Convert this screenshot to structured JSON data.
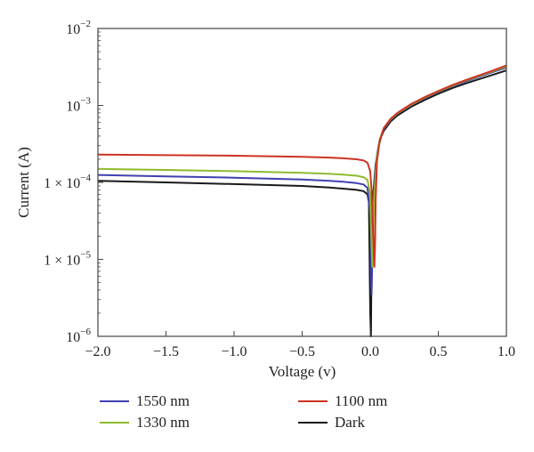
{
  "chart_data": {
    "type": "line",
    "xlabel": "Voltage (v)",
    "ylabel": "Current (A)",
    "xlim": [
      -2.0,
      1.0
    ],
    "ylim": [
      1e-06,
      0.01
    ],
    "yscale": "log",
    "grid": false,
    "legend_placement": "bottom",
    "x_ticks": [
      {
        "value": -2.0,
        "label": "−2.0"
      },
      {
        "value": -1.5,
        "label": "−1.5"
      },
      {
        "value": -1.0,
        "label": "−1.0"
      },
      {
        "value": -0.5,
        "label": "−0.5"
      },
      {
        "value": 0.0,
        "label": "0.0"
      },
      {
        "value": 0.5,
        "label": "0.5"
      },
      {
        "value": 1.0,
        "label": "1.0"
      }
    ],
    "y_ticks": [
      {
        "value": 0.01,
        "base": "10",
        "exp": "−2"
      },
      {
        "value": 0.001,
        "base": "10",
        "exp": "−3"
      },
      {
        "value": 0.0001,
        "base": "1 × 10",
        "exp": "−4"
      },
      {
        "value": 1e-05,
        "base": "1 × 10",
        "exp": "−5"
      },
      {
        "value": 1e-06,
        "base": "10",
        "exp": "−6"
      }
    ],
    "series": [
      {
        "name": "Dark",
        "color": "#1a1a1a",
        "x": [
          -2.0,
          -1.5,
          -1.0,
          -0.5,
          -0.3,
          -0.2,
          -0.1,
          -0.05,
          -0.02,
          -0.01,
          0.0,
          0.005,
          0.01,
          0.02,
          0.04,
          0.06,
          0.08,
          0.1,
          0.15,
          0.2,
          0.3,
          0.4,
          0.5,
          0.6,
          0.7,
          0.8,
          0.9,
          1.0
        ],
        "y": [
          0.000105,
          0.0001,
          9.5e-05,
          9e-05,
          8.6e-05,
          8.3e-05,
          8e-05,
          7.7e-05,
          7e-05,
          5.5e-05,
          2e-06,
          1e-06,
          1e-05,
          6.5e-05,
          0.00017,
          0.00029,
          0.00039,
          0.00047,
          0.00062,
          0.00074,
          0.00096,
          0.00118,
          0.00142,
          0.00167,
          0.00193,
          0.0022,
          0.0025,
          0.00285
        ]
      },
      {
        "name": "1550 nm",
        "color": "#4040b0",
        "x": [
          -2.0,
          -1.5,
          -1.0,
          -0.5,
          -0.3,
          -0.2,
          -0.1,
          -0.05,
          -0.02,
          0.0,
          0.005,
          0.01,
          0.02,
          0.03,
          0.05,
          0.07,
          0.1,
          0.15,
          0.2,
          0.3,
          0.4,
          0.5,
          0.6,
          0.7,
          0.8,
          0.9,
          1.0
        ],
        "y": [
          0.000125,
          0.00012,
          0.000115,
          0.000109,
          0.000105,
          0.000102,
          9.8e-05,
          9.4e-05,
          8.5e-05,
          4e-05,
          8e-06,
          3.5e-06,
          2.5e-05,
          9e-05,
          0.00023,
          0.00036,
          0.0005,
          0.00065,
          0.00078,
          0.00101,
          0.00124,
          0.0015,
          0.00177,
          0.00205,
          0.00236,
          0.00272,
          0.0031
        ]
      },
      {
        "name": "1330 nm",
        "color": "#8fba2e",
        "x": [
          -2.0,
          -1.5,
          -1.0,
          -0.5,
          -0.3,
          -0.2,
          -0.1,
          -0.05,
          -0.02,
          0.0,
          0.01,
          0.015,
          0.02,
          0.03,
          0.05,
          0.07,
          0.1,
          0.15,
          0.2,
          0.3,
          0.4,
          0.5,
          0.6,
          0.7,
          0.8,
          0.9,
          1.0
        ],
        "y": [
          0.00015,
          0.000145,
          0.00014,
          0.000133,
          0.000129,
          0.000126,
          0.000122,
          0.000117,
          0.000108,
          7e-05,
          1.5e-05,
          8e-06,
          2e-05,
          7.5e-05,
          0.00022,
          0.00036,
          0.00051,
          0.00066,
          0.00079,
          0.00102,
          0.00126,
          0.00152,
          0.0018,
          0.0021,
          0.00242,
          0.00278,
          0.0032
        ]
      },
      {
        "name": "1100 nm",
        "color": "#cc3322",
        "x": [
          -2.0,
          -1.5,
          -1.0,
          -0.5,
          -0.3,
          -0.2,
          -0.1,
          -0.05,
          -0.02,
          0.0,
          0.01,
          0.02,
          0.03,
          0.035,
          0.04,
          0.05,
          0.07,
          0.1,
          0.15,
          0.2,
          0.3,
          0.4,
          0.5,
          0.6,
          0.7,
          0.8,
          0.9,
          1.0
        ],
        "y": [
          0.00023,
          0.000226,
          0.000222,
          0.000215,
          0.00021,
          0.000206,
          0.0002,
          0.000193,
          0.00018,
          0.00014,
          8e-05,
          2.5e-05,
          8e-06,
          1.5e-05,
          6e-05,
          0.00019,
          0.00035,
          0.00051,
          0.00067,
          0.0008,
          0.00104,
          0.00128,
          0.00154,
          0.00183,
          0.00213,
          0.00246,
          0.00284,
          0.0033
        ]
      }
    ],
    "legend": [
      {
        "label": "1550 nm",
        "color": "#4040b0"
      },
      {
        "label": "1100 nm",
        "color": "#cc3322"
      },
      {
        "label": "1330 nm",
        "color": "#8fba2e"
      },
      {
        "label": "Dark",
        "color": "#1a1a1a"
      }
    ]
  }
}
